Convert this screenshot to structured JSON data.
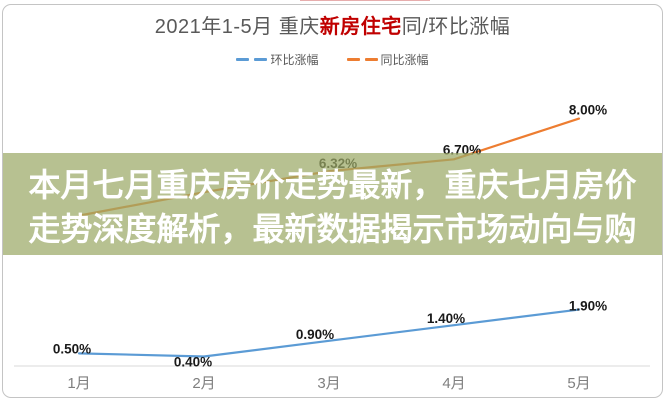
{
  "card": {
    "title": {
      "prefix": "2021年1-5月 重庆",
      "highlight": "新房住宅",
      "suffix": "同/环比涨幅",
      "highlight_color": "#c00000",
      "text_color": "#595959"
    },
    "legend": [
      {
        "label": "环比涨幅",
        "color": "#5b9bd5"
      },
      {
        "label": "同比涨幅",
        "color": "#ed7d31"
      }
    ],
    "overlay": {
      "line1": "本月七月重庆房价走势最新，重庆七月房价",
      "line2": "走势深度解析，最新数据揭示市场动向与购",
      "bg_color": "rgba(155,169,102,0.72)",
      "text_color": "#ffffff"
    }
  },
  "chart_data": {
    "type": "line",
    "title": "2021年1-5月 重庆新房住宅同/环比涨幅",
    "categories": [
      "1月",
      "2月",
      "3月",
      "4月",
      "5月"
    ],
    "series": [
      {
        "name": "环比涨幅",
        "color": "#5b9bd5",
        "values": [
          0.5,
          0.4,
          0.9,
          1.4,
          1.9
        ],
        "labels": [
          "0.50%",
          "0.40%",
          "0.90%",
          "1.40%",
          "1.90%"
        ]
      },
      {
        "name": "同比涨幅",
        "color": "#ed7d31",
        "values": [
          4.9,
          5.65,
          6.32,
          6.7,
          8.0
        ],
        "labels": [
          "",
          "",
          "6.32%",
          "6.70%",
          "8.00%"
        ]
      }
    ],
    "ylim": [
      0,
      9
    ],
    "grid": false,
    "legend_position": "top",
    "axis_color": "#d9d9d9",
    "label_color": "#1a1a1a",
    "tick_color": "#7f7f7f"
  }
}
